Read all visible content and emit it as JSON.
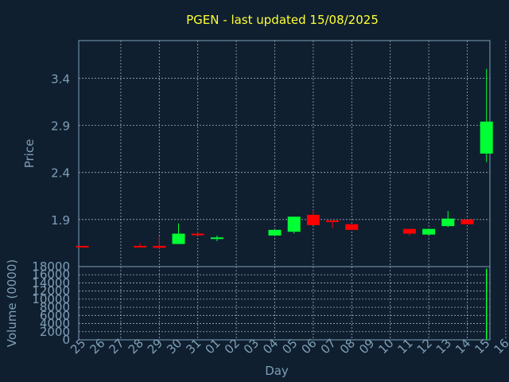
{
  "chart_data": {
    "type": "candlestick",
    "title": "PGEN - last updated 15/08/2025",
    "xlabel": "Day",
    "price_ylabel": "Price",
    "volume_ylabel": "Volume (0000)",
    "x_ticks": [
      "25",
      "26",
      "27",
      "28",
      "29",
      "30",
      "31",
      "01",
      "02",
      "03",
      "04",
      "05",
      "06",
      "07",
      "08",
      "09",
      "10",
      "11",
      "12",
      "13",
      "14",
      "15",
      "16"
    ],
    "price_yticks": [
      1.9,
      2.4,
      2.9,
      3.4
    ],
    "price_ylim": [
      1.4,
      3.8
    ],
    "volume_yticks": [
      0,
      2000,
      4000,
      6000,
      8000,
      10000,
      12000,
      14000,
      16000,
      18000
    ],
    "volume_ylim": [
      0,
      18000
    ],
    "grid": true,
    "colors": {
      "up": "#00ff33",
      "down": "#ff0000",
      "background": "#0f1f30",
      "title": "#ffff33",
      "axis": "#7f9fb6"
    },
    "candles": [
      {
        "day": "25",
        "open": 1.62,
        "close": 1.61,
        "high": 1.62,
        "low": 1.61
      },
      {
        "day": "28",
        "open": 1.62,
        "close": 1.61,
        "high": 1.65,
        "low": 1.6
      },
      {
        "day": "29",
        "open": 1.62,
        "close": 1.6,
        "high": 1.72,
        "low": 1.59
      },
      {
        "day": "30",
        "open": 1.64,
        "close": 1.75,
        "high": 1.86,
        "low": 1.64
      },
      {
        "day": "31",
        "open": 1.75,
        "close": 1.74,
        "high": 1.77,
        "low": 1.73
      },
      {
        "day": "01",
        "open": 1.7,
        "close": 1.71,
        "high": 1.73,
        "low": 1.67
      },
      {
        "day": "04",
        "open": 1.73,
        "close": 1.79,
        "high": 1.79,
        "low": 1.73
      },
      {
        "day": "05",
        "open": 1.77,
        "close": 1.93,
        "high": 1.93,
        "low": 1.75
      },
      {
        "day": "06",
        "open": 1.95,
        "close": 1.84,
        "high": 2.0,
        "low": 1.84
      },
      {
        "day": "07",
        "open": 1.89,
        "close": 1.88,
        "high": 1.89,
        "low": 1.81
      },
      {
        "day": "08",
        "open": 1.85,
        "close": 1.79,
        "high": 1.85,
        "low": 1.79
      },
      {
        "day": "11",
        "open": 1.8,
        "close": 1.75,
        "high": 1.8,
        "low": 1.73
      },
      {
        "day": "12",
        "open": 1.74,
        "close": 1.8,
        "high": 1.8,
        "low": 1.74
      },
      {
        "day": "13",
        "open": 1.83,
        "close": 1.91,
        "high": 1.99,
        "low": 1.82
      },
      {
        "day": "14",
        "open": 1.9,
        "close": 1.85,
        "high": 1.9,
        "low": 1.85
      },
      {
        "day": "15",
        "open": 2.6,
        "close": 2.94,
        "high": 3.5,
        "low": 2.51
      }
    ],
    "volume": [
      {
        "day": "15",
        "value": 17500
      }
    ]
  }
}
